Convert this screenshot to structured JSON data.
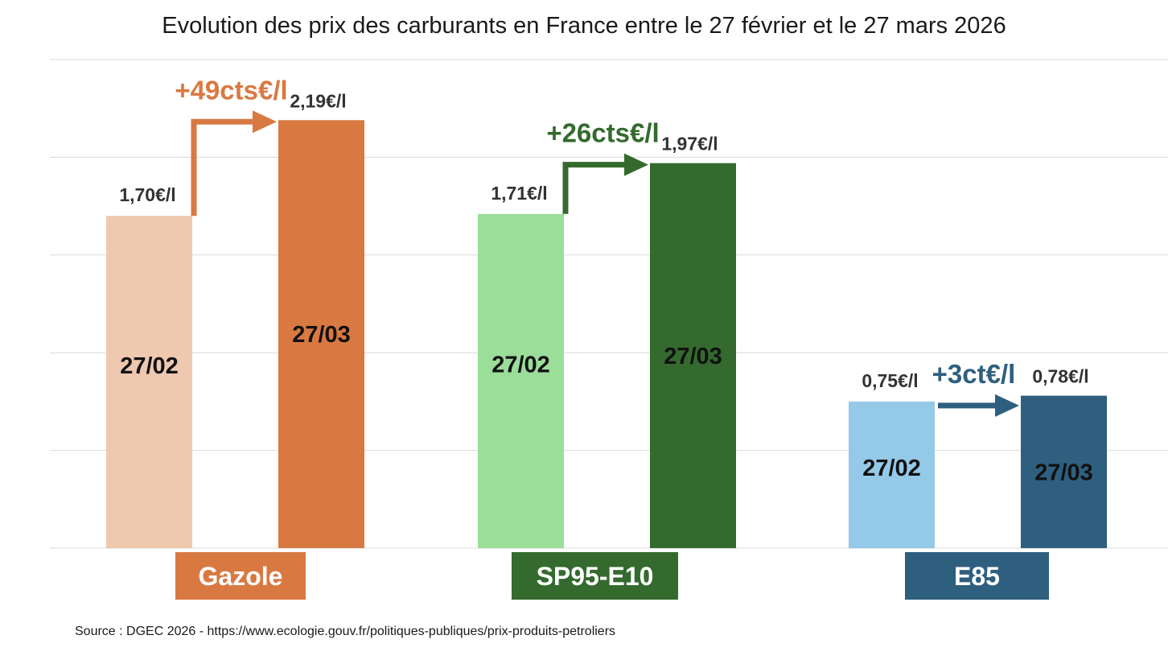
{
  "chart_data": {
    "type": "bar",
    "title": "Evolution des prix des carburants en France entre le 27 février et le 27 mars 2026",
    "categories": [
      "Gazole",
      "SP95-E10",
      "E85"
    ],
    "series": [
      {
        "name": "27/02",
        "values": [
          1.7,
          1.71,
          0.75
        ],
        "value_labels": [
          "1,70€/l",
          "1,71€/l",
          "0,75€/l"
        ],
        "colors": [
          "#efc8b0",
          "#9bde9a",
          "#95c9e8"
        ]
      },
      {
        "name": "27/03",
        "values": [
          2.19,
          1.97,
          0.78
        ],
        "value_labels": [
          "2,19€/l",
          "1,97€/l",
          "0,78€/l"
        ],
        "colors": [
          "#d97942",
          "#346a2e",
          "#2e5f7f"
        ]
      }
    ],
    "changes": [
      "+49cts€/l",
      "+26cts€/l",
      "+3ct€/l"
    ],
    "change_colors": [
      "#d97942",
      "#346a2e",
      "#2e5f7f"
    ],
    "category_colors": [
      "#d97942",
      "#346a2e",
      "#2e5f7f"
    ],
    "ylim": [
      0,
      2.5
    ],
    "grid": true,
    "xlabel": "",
    "ylabel": ""
  },
  "source": "Source : DGEC 2026 - https://www.ecologie.gouv.fr/politiques-publiques/prix-produits-petroliers"
}
